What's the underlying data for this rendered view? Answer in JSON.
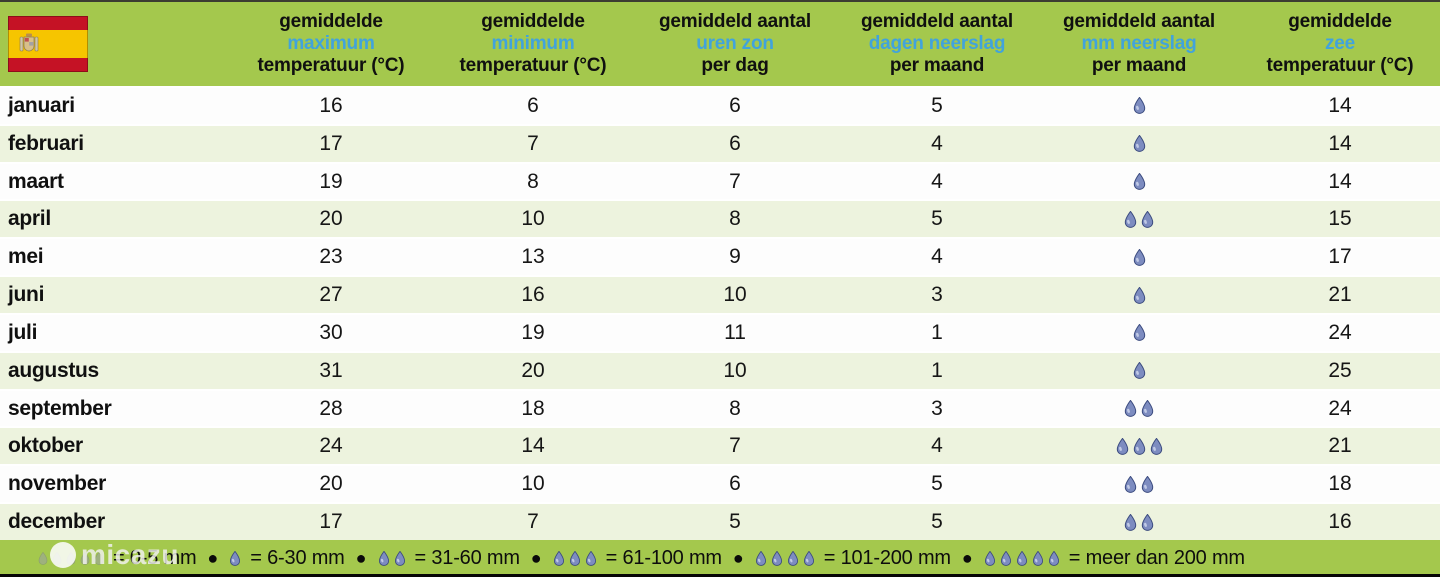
{
  "colors": {
    "green": "#a4c84d",
    "stripe": "#edf3de",
    "blue": "#41a3dc",
    "drop_fill": "#7d8cc0",
    "drop_outline": "#3a4a7e",
    "flag_red": "#c51225",
    "flag_yellow": "#f6c500"
  },
  "flag": {
    "name": "spain-flag"
  },
  "table": {
    "columns": [
      {
        "line1": "gemiddelde",
        "line2": "maximum",
        "line3": "temperatuur (°C)"
      },
      {
        "line1": "gemiddelde",
        "line2": "minimum",
        "line3": "temperatuur (°C)"
      },
      {
        "line1": "gemiddeld aantal",
        "line2": "uren zon",
        "line3": "per dag"
      },
      {
        "line1": "gemiddeld aantal",
        "line2": "dagen neerslag",
        "line3": "per maand"
      },
      {
        "line1": "gemiddeld aantal",
        "line2": "mm neerslag",
        "line3": "per maand"
      },
      {
        "line1": "gemiddelde",
        "line2": "zee",
        "line3": "temperatuur (°C)"
      }
    ],
    "rows": [
      {
        "month": "januari",
        "max_temp": "16",
        "min_temp": "6",
        "sun_hours": "6",
        "rain_days": "5",
        "rain_drops": 1,
        "sea_temp": "14"
      },
      {
        "month": "februari",
        "max_temp": "17",
        "min_temp": "7",
        "sun_hours": "6",
        "rain_days": "4",
        "rain_drops": 1,
        "sea_temp": "14"
      },
      {
        "month": "maart",
        "max_temp": "19",
        "min_temp": "8",
        "sun_hours": "7",
        "rain_days": "4",
        "rain_drops": 1,
        "sea_temp": "14"
      },
      {
        "month": "april",
        "max_temp": "20",
        "min_temp": "10",
        "sun_hours": "8",
        "rain_days": "5",
        "rain_drops": 2,
        "sea_temp": "15"
      },
      {
        "month": "mei",
        "max_temp": "23",
        "min_temp": "13",
        "sun_hours": "9",
        "rain_days": "4",
        "rain_drops": 1,
        "sea_temp": "17"
      },
      {
        "month": "juni",
        "max_temp": "27",
        "min_temp": "16",
        "sun_hours": "10",
        "rain_days": "3",
        "rain_drops": 1,
        "sea_temp": "21"
      },
      {
        "month": "juli",
        "max_temp": "30",
        "min_temp": "19",
        "sun_hours": "11",
        "rain_days": "1",
        "rain_drops": 1,
        "sea_temp": "24"
      },
      {
        "month": "augustus",
        "max_temp": "31",
        "min_temp": "20",
        "sun_hours": "10",
        "rain_days": "1",
        "rain_drops": 1,
        "sea_temp": "25"
      },
      {
        "month": "september",
        "max_temp": "28",
        "min_temp": "18",
        "sun_hours": "8",
        "rain_days": "3",
        "rain_drops": 2,
        "sea_temp": "24"
      },
      {
        "month": "oktober",
        "max_temp": "24",
        "min_temp": "14",
        "sun_hours": "7",
        "rain_days": "4",
        "rain_drops": 3,
        "sea_temp": "21"
      },
      {
        "month": "november",
        "max_temp": "20",
        "min_temp": "10",
        "sun_hours": "6",
        "rain_days": "5",
        "rain_drops": 2,
        "sea_temp": "18"
      },
      {
        "month": "december",
        "max_temp": "17",
        "min_temp": "7",
        "sun_hours": "5",
        "rain_days": "5",
        "rain_drops": 2,
        "sea_temp": "16"
      }
    ]
  },
  "legend": {
    "separator": "●",
    "items": [
      {
        "drops": 5,
        "faded": true,
        "label": "= 0-5 mm"
      },
      {
        "drops": 1,
        "faded": false,
        "label": "= 6-30 mm"
      },
      {
        "drops": 2,
        "faded": false,
        "label": "= 31-60 mm"
      },
      {
        "drops": 3,
        "faded": false,
        "label": "= 61-100 mm"
      },
      {
        "drops": 4,
        "faded": false,
        "label": "= 101-200 mm"
      },
      {
        "drops": 5,
        "faded": false,
        "label": "= meer dan 200 mm"
      }
    ]
  },
  "watermark": {
    "text": "micazu"
  },
  "chart_data": {
    "type": "table",
    "row_labels": [
      "januari",
      "februari",
      "maart",
      "april",
      "mei",
      "juni",
      "juli",
      "augustus",
      "september",
      "oktober",
      "november",
      "december"
    ],
    "series": [
      {
        "name": "gemiddelde maximum temperatuur (°C)",
        "values": [
          16,
          17,
          19,
          20,
          23,
          27,
          30,
          31,
          28,
          24,
          20,
          17
        ]
      },
      {
        "name": "gemiddelde minimum temperatuur (°C)",
        "values": [
          6,
          7,
          8,
          10,
          13,
          16,
          19,
          20,
          18,
          14,
          10,
          7
        ]
      },
      {
        "name": "gemiddeld aantal uren zon per dag",
        "values": [
          6,
          6,
          7,
          8,
          9,
          10,
          11,
          10,
          8,
          7,
          6,
          5
        ]
      },
      {
        "name": "gemiddeld aantal dagen neerslag per maand",
        "values": [
          5,
          4,
          4,
          5,
          4,
          3,
          1,
          1,
          3,
          4,
          5,
          5
        ]
      },
      {
        "name": "gemiddeld aantal mm neerslag per maand (druppels)",
        "values": [
          1,
          1,
          1,
          2,
          1,
          1,
          1,
          1,
          2,
          3,
          2,
          2
        ]
      },
      {
        "name": "gemiddelde zee temperatuur (°C)",
        "values": [
          14,
          14,
          14,
          15,
          17,
          21,
          24,
          25,
          24,
          21,
          18,
          16
        ]
      }
    ],
    "legend_note": "1 druppel = 6-30 mm, 2 = 31-60 mm, 3 = 61-100 mm, 4 = 101-200 mm, 5 = meer dan 200 mm, geen = 0-5 mm"
  }
}
